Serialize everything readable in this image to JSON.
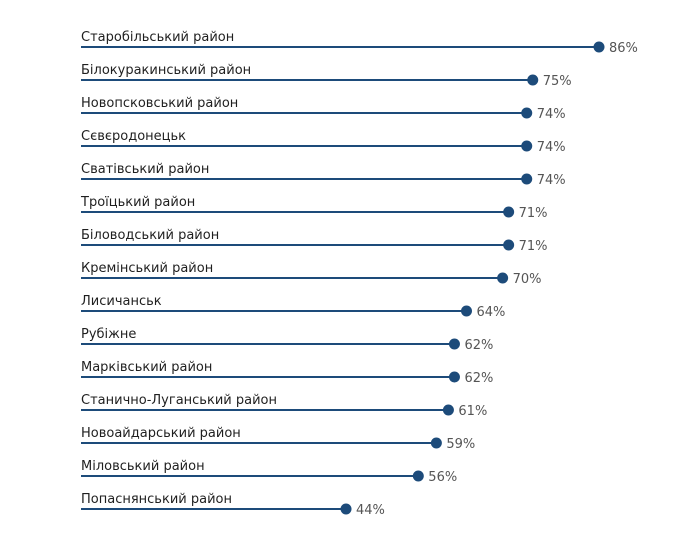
{
  "chart_data": {
    "type": "bar",
    "style": "lollipop",
    "orientation": "horizontal",
    "categories": [
      "Старобільський район",
      "Білокуракинський район",
      "Новопсковський район",
      "Сєвєродонецьк",
      "Сватівський район",
      "Троїцький район",
      "Біловодський район",
      "Кремінський район",
      "Лисичанськ",
      "Рубіжне",
      "Марківський район",
      "Станично-Луганський район",
      "Новоайдарський район",
      "Міловський район",
      "Попаснянський район"
    ],
    "values": [
      86,
      75,
      74,
      74,
      74,
      71,
      71,
      70,
      64,
      62,
      62,
      61,
      59,
      56,
      44
    ],
    "value_labels": [
      "86%",
      "75%",
      "74%",
      "74%",
      "74%",
      "71%",
      "71%",
      "70%",
      "64%",
      "62%",
      "62%",
      "61%",
      "59%",
      "56%",
      "44%"
    ],
    "unit": "%",
    "xlim": [
      0,
      100
    ],
    "grid": false,
    "legend": "none",
    "colors": {
      "bar": "#1d4b7a",
      "dot": "#1d4b7a",
      "category_text": "#1f1f1f",
      "value_text": "#555555"
    }
  }
}
